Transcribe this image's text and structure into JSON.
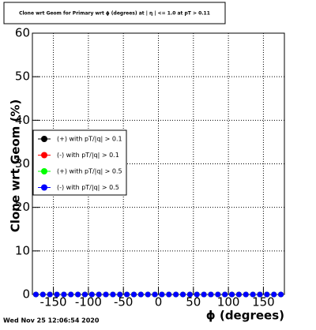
{
  "chart_data": {
    "type": "scatter",
    "title": "Clone wrt Geom for Primary wrt ϕ (degrees) at | η | <= 1.0 at pT > 0.11",
    "x_label": "ϕ (degrees)",
    "y_label": "Clone wrt Geom (%)",
    "date": "Wed Nov 25 12:06:54 2020",
    "x": [
      -175,
      -165,
      -155,
      -145,
      -135,
      -125,
      -115,
      -105,
      -95,
      -85,
      -75,
      -65,
      -55,
      -45,
      -35,
      -25,
      -15,
      -5,
      5,
      15,
      25,
      35,
      45,
      55,
      65,
      75,
      85,
      95,
      105,
      115,
      125,
      135,
      145,
      155,
      165,
      175
    ],
    "series": [
      {
        "name": "(+) with pT/|q| > 0.1",
        "color": "#000000",
        "values": [
          0,
          0,
          0,
          0,
          0,
          0,
          0,
          0,
          0,
          0,
          0,
          0,
          0,
          0,
          0,
          0,
          0,
          0,
          0,
          0,
          0,
          0,
          0,
          0,
          0,
          0,
          0,
          0,
          0,
          0,
          0,
          0,
          0,
          0,
          0,
          0
        ]
      },
      {
        "name": "(-) with pT/|q| > 0.1",
        "color": "#ff0000",
        "values": [
          0,
          0,
          0,
          0,
          0,
          0,
          0,
          0,
          0,
          0,
          0,
          0,
          0,
          0,
          0,
          0,
          0,
          0,
          0,
          0,
          0,
          0,
          0,
          0,
          0,
          0,
          0,
          0,
          0,
          0,
          0,
          0,
          0,
          0,
          0,
          0
        ]
      },
      {
        "name": "(+) with pT/|q| > 0.5",
        "color": "#00ff00",
        "values": [
          0,
          0,
          0,
          0,
          0,
          0,
          0,
          0,
          0,
          0,
          0,
          0,
          0,
          0,
          0,
          0,
          0,
          0,
          0,
          0,
          0,
          0,
          0,
          0,
          0,
          0,
          0,
          0,
          0,
          0,
          0,
          0,
          0,
          0,
          0,
          0
        ]
      },
      {
        "name": "(-) with pT/|q| > 0.5",
        "color": "#0000ff",
        "values": [
          0,
          0,
          0,
          0,
          0,
          0,
          0,
          0,
          0,
          0,
          0,
          0,
          0,
          0,
          0,
          0,
          0,
          0,
          0,
          0,
          0,
          0,
          0,
          0,
          0,
          0,
          0,
          0,
          0,
          0,
          0,
          0,
          0,
          0,
          0,
          0
        ]
      }
    ],
    "xlim": [
      -180,
      180
    ],
    "xticks": [
      -150,
      -100,
      -50,
      0,
      50,
      100,
      150
    ],
    "ylim": [
      0,
      60
    ],
    "yticks": [
      0,
      10,
      20,
      30,
      40,
      50,
      60
    ],
    "grid": true,
    "legend": "left"
  }
}
